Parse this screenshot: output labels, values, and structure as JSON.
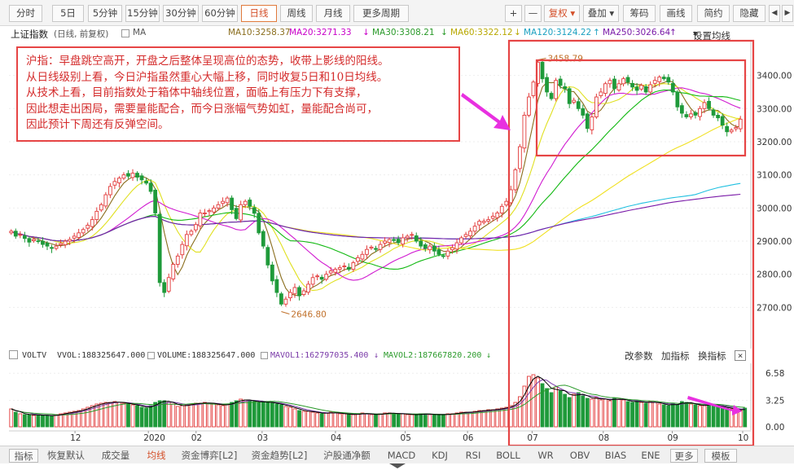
{
  "toolbar": {
    "periods": [
      "分时",
      "5日",
      "5分钟",
      "15分钟",
      "30分钟",
      "60分钟",
      "日线",
      "周线",
      "月线",
      "更多周期"
    ],
    "period_selected": "日线",
    "right": [
      "+",
      "—",
      "复权",
      "叠加",
      "筹码",
      "画线",
      "简约",
      "隐藏"
    ]
  },
  "legend": {
    "index_name": "上证指数",
    "desc": "(日线, 前复权)",
    "ma_label": "MA",
    "ma10": "MA10:3258.37",
    "ma20": "MA20:3271.33",
    "ma30": "MA30:3308.21",
    "ma60": "MA60:3322.12",
    "ma120": "MA120:3124.22",
    "ma250": "MA250:3026.64",
    "settings": "设置均线"
  },
  "annotation": {
    "lines": [
      "沪指：早盘跳空高开，开盘之后整体呈现高位的态势，收带上影线的阳线。",
      "从日线级别上看，今日沪指虽然重心大幅上移，同时收复5日和10日均线。",
      "从技术上看，目前指数处于箱体中轴线位置，面临上有压力下有支撑，",
      "因此想走出困局，需要量能配合，而今日涨幅气势如虹，量能配合尚可，",
      "因此预计下周还有反弹空间。"
    ]
  },
  "volume": {
    "labels": [
      "VOLTV",
      "VVOL:188325647.000",
      "VOLUME:188325647.000",
      "MAVOL1:162797035.400",
      "MAVOL2:187667820.200"
    ],
    "controls": [
      "改参数",
      "加指标",
      "换指标"
    ]
  },
  "tabs": [
    "指标",
    "恢复默认",
    "成交量",
    "均线",
    "资金博弈[L2]",
    "资金趋势[L2]",
    "沪股通净额",
    "MACD",
    "KDJ",
    "RSI",
    "BOLL",
    "WR",
    "OBV",
    "BIAS",
    "ENE",
    "更多",
    "模板"
  ],
  "tab_selected": "均线",
  "colors": {
    "up": "#e23b3b",
    "down": "#1f9a3a",
    "ma5": "#8a6d1d",
    "ma10": "#e0e020",
    "ma20": "#d01ad0",
    "ma30": "#11b811",
    "ma60": "#f0e020",
    "ma120": "#20c0e0",
    "ma250": "#7a1aa8",
    "highlight": "#e64545",
    "arrow": "#e830e0"
  },
  "chart_data": {
    "type": "candlestick",
    "title": "上证指数 (日线, 前复权)",
    "x_labels": [
      "12",
      "2020",
      "02",
      "03",
      "04",
      "05",
      "06",
      "07",
      "08",
      "09",
      "10"
    ],
    "y_ticks": [
      2700,
      2800,
      2900,
      3000,
      3100,
      3200,
      3300,
      3400
    ],
    "ylim": [
      2610,
      3490
    ],
    "annotations": {
      "high": "3458.79",
      "low": "2646.80"
    },
    "closes": [
      2930,
      2915,
      2920,
      2908,
      2897,
      2905,
      2900,
      2890,
      2885,
      2878,
      2885,
      2893,
      2900,
      2905,
      2915,
      2925,
      2935,
      2948,
      2965,
      2990,
      3010,
      3040,
      3065,
      3080,
      3090,
      3100,
      3096,
      3105,
      3093,
      3085,
      3075,
      3050,
      2985,
      2775,
      2745,
      2790,
      2830,
      2855,
      2890,
      2920,
      2930,
      2950,
      2985,
      2985,
      2992,
      3000,
      3010,
      3020,
      3030,
      2995,
      2968,
      3010,
      3020,
      3005,
      2984,
      2925,
      2885,
      2828,
      2780,
      2745,
      2710,
      2725,
      2745,
      2760,
      2735,
      2750,
      2770,
      2790,
      2795,
      2785,
      2800,
      2810,
      2815,
      2820,
      2825,
      2815,
      2835,
      2850,
      2860,
      2875,
      2882,
      2875,
      2890,
      2900,
      2905,
      2902,
      2895,
      2910,
      2915,
      2920,
      2900,
      2885,
      2878,
      2885,
      2870,
      2860,
      2855,
      2870,
      2880,
      2895,
      2910,
      2920,
      2930,
      2945,
      2960,
      2960,
      2965,
      2975,
      2985,
      3005,
      3020,
      3055,
      3115,
      3185,
      3280,
      3335,
      3380,
      3440,
      3390,
      3350,
      3330,
      3385,
      3370,
      3360,
      3315,
      3325,
      3300,
      3280,
      3240,
      3275,
      3335,
      3350,
      3375,
      3385,
      3360,
      3375,
      3390,
      3380,
      3365,
      3355,
      3370,
      3350,
      3372,
      3385,
      3395,
      3390,
      3380,
      3350,
      3305,
      3286,
      3275,
      3284,
      3280,
      3300,
      3318,
      3300,
      3280,
      3272,
      3250,
      3230,
      3235,
      3243,
      3268
    ],
    "volumes": [
      2.2,
      1.8,
      1.6,
      1.5,
      1.5,
      1.4,
      1.5,
      1.4,
      1.4,
      1.3,
      1.5,
      1.6,
      1.7,
      1.8,
      1.9,
      2.0,
      2.2,
      2.4,
      2.6,
      2.8,
      2.9,
      3.0,
      3.0,
      3.1,
      3.0,
      2.9,
      2.8,
      2.7,
      2.6,
      2.4,
      2.3,
      2.6,
      3.0,
      3.2,
      3.2,
      3.0,
      2.8,
      2.5,
      2.6,
      2.7,
      2.8,
      2.9,
      2.9,
      3.0,
      2.9,
      2.8,
      2.7,
      2.6,
      2.8,
      3.0,
      3.2,
      3.4,
      3.3,
      3.2,
      3.1,
      3.0,
      3.1,
      3.0,
      2.9,
      2.8,
      2.7,
      2.5,
      2.4,
      2.2,
      2.0,
      1.9,
      1.9,
      1.8,
      1.7,
      1.6,
      1.7,
      1.8,
      1.7,
      1.6,
      1.6,
      1.5,
      1.5,
      1.6,
      1.7,
      1.6,
      1.5,
      1.5,
      1.6,
      1.7,
      1.7,
      1.6,
      1.6,
      1.6,
      1.5,
      1.5,
      1.5,
      1.6,
      1.6,
      1.5,
      1.5,
      1.5,
      1.5,
      1.6,
      1.6,
      1.7,
      1.8,
      1.8,
      1.8,
      1.9,
      2.0,
      2.0,
      2.1,
      2.1,
      2.2,
      2.3,
      2.4,
      2.6,
      3.0,
      3.7,
      5.0,
      6.2,
      6.4,
      6.0,
      5.3,
      4.7,
      4.2,
      4.9,
      4.4,
      4.0,
      3.6,
      4.0,
      4.2,
      3.8,
      3.5,
      3.4,
      3.6,
      3.3,
      3.4,
      3.2,
      3.5,
      3.4,
      3.3,
      3.1,
      3.0,
      3.2,
      3.0,
      2.9,
      3.1,
      3.0,
      2.8,
      2.7,
      2.6,
      2.9,
      2.7,
      3.1,
      3.0,
      2.8,
      2.7,
      2.6,
      2.6,
      2.8,
      2.7,
      2.5,
      2.4,
      2.3,
      2.2,
      2.1,
      2.0,
      2.3
    ]
  }
}
